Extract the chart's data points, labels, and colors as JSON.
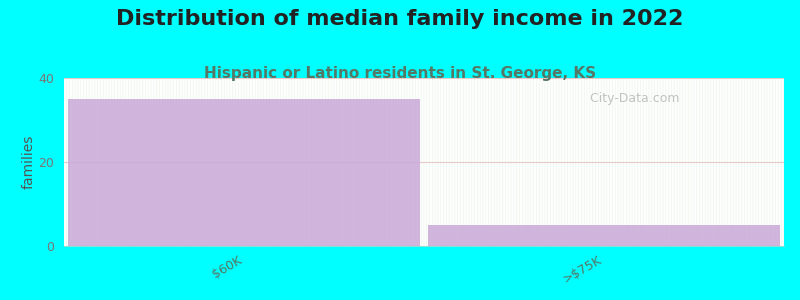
{
  "title": "Distribution of median family income in 2022",
  "subtitle": "Hispanic or Latino residents in St. George, KS",
  "categories": [
    "$60K",
    ">$75K"
  ],
  "values": [
    35,
    5
  ],
  "bar_color": "#c9a8d8",
  "background_color": "#00ffff",
  "plot_bg_colors": [
    "#eaf7ea",
    "#ffffff",
    "#dff0df"
  ],
  "ylabel": "families",
  "ylim": [
    0,
    40
  ],
  "yticks": [
    0,
    20,
    40
  ],
  "title_fontsize": 16,
  "subtitle_fontsize": 11,
  "subtitle_color": "#557766",
  "ylabel_color": "#555555",
  "watermark": "  City-Data.com",
  "watermark_color": "#aaaaaa",
  "grid_color": "#ddaaaa",
  "tick_label_color": "#557766",
  "tick_label_fontsize": 9
}
